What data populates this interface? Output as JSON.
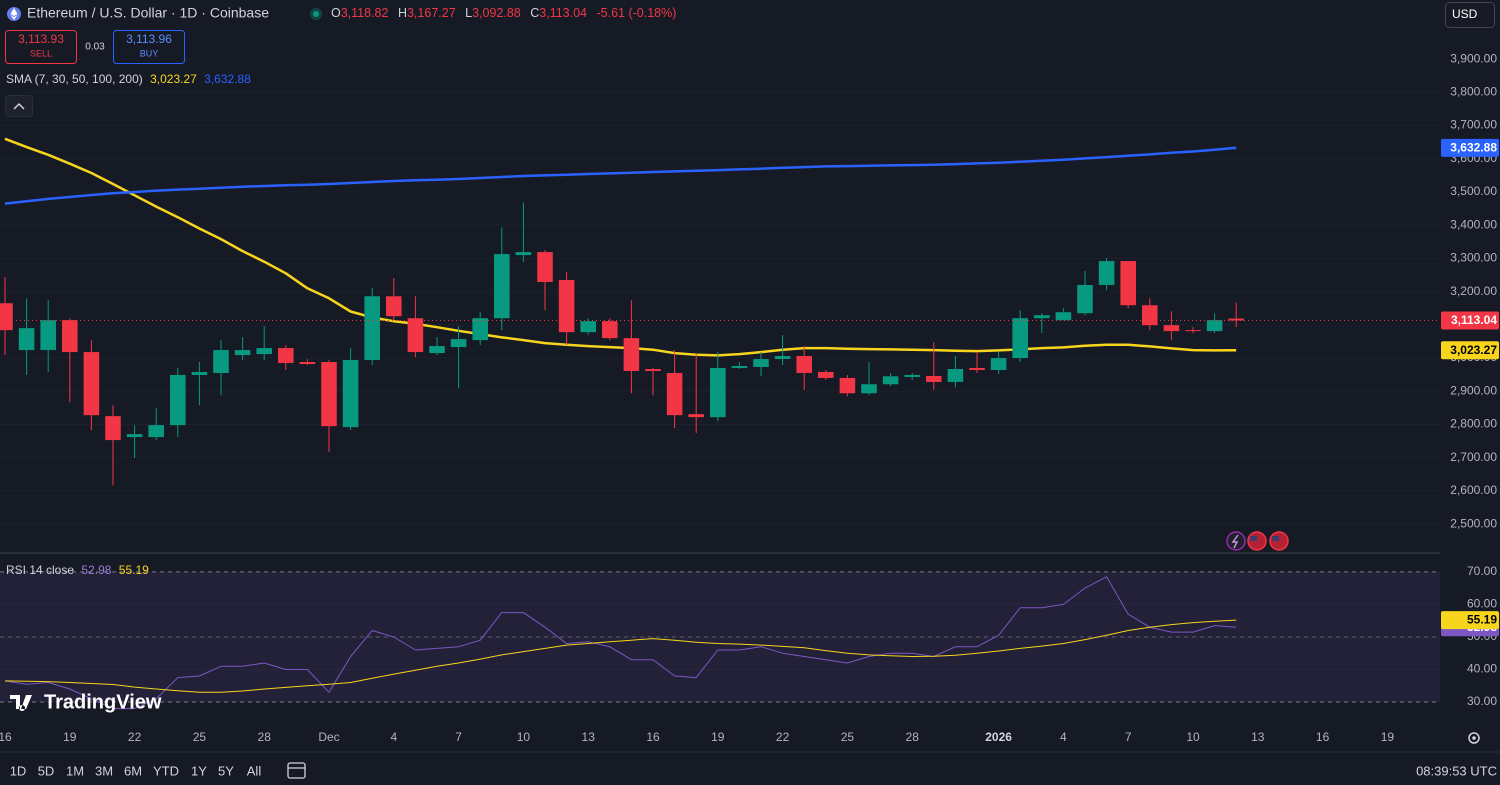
{
  "ui": {
    "sell_price": "3,113.93",
    "sell": "SELL",
    "spread": "0.03",
    "buy_price": "3,113.96",
    "buy": "BUY",
    "currency": "USD",
    "brand": "TradingView",
    "clock": "08:39:53 UTC",
    "ranges": [
      "1D",
      "5D",
      "1M",
      "3M",
      "6M",
      "YTD",
      "1Y",
      "5Y",
      "All"
    ]
  },
  "chart_data": [
    {
      "type": "candlestick",
      "title": "Ethereum / U.S. Dollar · 1D · Coinbase",
      "ohlc": [
        {
          "key": "O",
          "label": "3,118.82"
        },
        {
          "key": "H",
          "label": "3,167.27"
        },
        {
          "key": "L",
          "label": "3,092.88"
        },
        {
          "key": "C",
          "label": "3,113.04"
        }
      ],
      "change": "-5.61 (-0.18%)",
      "categories": [
        "16",
        null,
        null,
        "19",
        null,
        null,
        "22",
        null,
        null,
        "25",
        null,
        null,
        "28",
        null,
        null,
        "Dec",
        null,
        null,
        "4",
        null,
        null,
        "7",
        null,
        null,
        "10",
        null,
        null,
        "13",
        null,
        null,
        "16",
        null,
        null,
        "19",
        null,
        null,
        "22",
        null,
        null,
        "25",
        null,
        null,
        "28",
        null,
        null,
        null,
        "2026",
        null,
        null,
        "4",
        null,
        null,
        "7",
        null,
        null,
        "10",
        null,
        null
      ],
      "xticks_after": [
        "13",
        "16",
        "19"
      ],
      "open": [
        3165,
        3024,
        3024,
        3114,
        3018,
        2825,
        2762,
        2762,
        2798,
        2949,
        2955,
        3009,
        3012,
        3030,
        2988,
        2988,
        2792,
        2994,
        3186,
        3120,
        3015,
        3033,
        3054,
        3120,
        3310,
        3319,
        3235,
        3078,
        3111,
        3060,
        2967,
        2955,
        2831,
        2822,
        2970,
        2973,
        2997,
        3006,
        2958,
        2940,
        2894,
        2921,
        2943,
        2946,
        2928,
        2970,
        2964,
        3000,
        3120,
        3114,
        3135,
        3220,
        3292,
        3159,
        3099,
        3084,
        3081,
        3118.82
      ],
      "high": [
        3244,
        3180,
        3174,
        3120,
        3054,
        2858,
        2798,
        2849,
        2970,
        2988,
        3054,
        3063,
        3096,
        3039,
        2997,
        2994,
        3030,
        3211,
        3241,
        3186,
        3063,
        3096,
        3138,
        3394,
        3469,
        3325,
        3259,
        3120,
        3120,
        3174,
        2970,
        3024,
        3012,
        3018,
        2988,
        3018,
        3069,
        3036,
        2964,
        2949,
        2988,
        2955,
        2955,
        3048,
        3006,
        3018,
        3018,
        3144,
        3135,
        3150,
        3262,
        3301,
        3292,
        3180,
        3141,
        3093,
        3135,
        3167.27
      ],
      "low": [
        3009,
        2949,
        2958,
        2867,
        2783,
        2617,
        2699,
        2753,
        2762,
        2858,
        2888,
        2994,
        2994,
        2964,
        2979,
        2717,
        2783,
        2979,
        3114,
        3003,
        3009,
        2909,
        3039,
        3084,
        3289,
        3144,
        3039,
        3069,
        3054,
        2894,
        2888,
        2789,
        2774,
        2810,
        2967,
        2946,
        2979,
        2904,
        2934,
        2885,
        2888,
        2915,
        2934,
        2904,
        2912,
        2955,
        2952,
        2988,
        3075,
        3114,
        3129,
        3205,
        3150,
        3084,
        3054,
        3075,
        3075,
        3092.88
      ],
      "close": [
        3084,
        3090,
        3114,
        3018,
        2828,
        2753,
        2771,
        2798,
        2949,
        2958,
        3024,
        3024,
        3030,
        2985,
        2982,
        2795,
        2994,
        3186,
        3126,
        3018,
        3036,
        3057,
        3120,
        3313,
        3319,
        3229,
        3078,
        3111,
        3060,
        2961,
        2961,
        2828,
        2822,
        2970,
        2976,
        2997,
        3006,
        2955,
        2940,
        2894,
        2921,
        2945,
        2949,
        2928,
        2967,
        2964,
        3000,
        3120,
        3129,
        3138,
        3220,
        3292,
        3159,
        3099,
        3081,
        3081,
        3114,
        3113.04
      ],
      "up_color": "#089981",
      "down_color": "#f23645",
      "last_price_label": "3,113.04",
      "indicator": "SMA (7, 30, 50, 100, 200)",
      "series": [
        {
          "color": "#f7d51d",
          "last_label": "3,023.27",
          "values": [
            3660,
            3635,
            3612,
            3585,
            3557,
            3524,
            3490,
            3456,
            3424,
            3390,
            3358,
            3322,
            3290,
            3255,
            3210,
            3180,
            3140,
            3122,
            3111,
            3103,
            3093,
            3082,
            3072,
            3062,
            3054,
            3045,
            3040,
            3036,
            3033,
            3030,
            3025,
            3015,
            3010,
            3008,
            3012,
            3018,
            3025,
            3030,
            3030,
            3028,
            3027,
            3026,
            3025,
            3024,
            3022,
            3021,
            3023,
            3026,
            3030,
            3032,
            3037,
            3040,
            3040,
            3035,
            3029,
            3024,
            3023,
            3023.27
          ]
        },
        {
          "color": "#2962ff",
          "last_label": "3,632.88",
          "values": [
            3465,
            3472,
            3479,
            3485,
            3491,
            3496,
            3500,
            3504,
            3507,
            3510,
            3513,
            3516,
            3518,
            3520,
            3522,
            3524,
            3527,
            3530,
            3533,
            3535,
            3537,
            3539,
            3542,
            3545,
            3548,
            3550,
            3552,
            3554,
            3556,
            3558,
            3560,
            3562,
            3564,
            3566,
            3568,
            3570,
            3573,
            3575,
            3577,
            3578,
            3579,
            3580,
            3581,
            3582,
            3584,
            3586,
            3588,
            3591,
            3594,
            3597,
            3601,
            3605,
            3609,
            3613,
            3618,
            3622,
            3627,
            3632.88
          ]
        }
      ],
      "ylim": [
        2413,
        4078
      ],
      "yticks": [
        {
          "value": 2500,
          "label": "2,500.00"
        },
        {
          "value": 2600,
          "label": "2,600.00"
        },
        {
          "value": 2700,
          "label": "2,700.00"
        },
        {
          "value": 2800,
          "label": "2,800.00"
        },
        {
          "value": 2900,
          "label": "2,900.00"
        },
        {
          "value": 3000,
          "label": "3,000.00"
        },
        {
          "value": 3100,
          "label": "3,100.00"
        },
        {
          "value": 3200,
          "label": "3,200.00"
        },
        {
          "value": 3300,
          "label": "3,300.00"
        },
        {
          "value": 3400,
          "label": "3,400.00"
        },
        {
          "value": 3500,
          "label": "3,500.00"
        },
        {
          "value": 3600,
          "label": "3,600.00"
        },
        {
          "value": 3700,
          "label": "3,700.00"
        },
        {
          "value": 3800,
          "label": "3,800.00"
        },
        {
          "value": 3900,
          "label": "3,900.00"
        }
      ],
      "grid": true
    },
    {
      "type": "line",
      "title": "RSI 14 close",
      "series": [
        {
          "color": "#7e57c2",
          "last_label": "52.98",
          "values": [
            36.5,
            35.5,
            36,
            34,
            31,
            28,
            28,
            31,
            37.5,
            38,
            41,
            41,
            42,
            40,
            40,
            33,
            44,
            52,
            50,
            46,
            46.5,
            47,
            49,
            57.5,
            57.5,
            53,
            48,
            48.5,
            47,
            43,
            43,
            38,
            37.5,
            46,
            46,
            47,
            45,
            44,
            43,
            42,
            44,
            45,
            45,
            44,
            47,
            47,
            50.5,
            59,
            59,
            60,
            65,
            68.5,
            57,
            53,
            51.5,
            51.5,
            53.5,
            52.98
          ]
        },
        {
          "color": "#f7d51d",
          "last_label": "55.19",
          "values": [
            36.5,
            36.4,
            36.3,
            36.0,
            35.7,
            35.4,
            34.6,
            34.0,
            33.5,
            33.0,
            33.0,
            33.4,
            34.0,
            34.5,
            35.0,
            35.5,
            36.0,
            37.3,
            38.6,
            39.8,
            41.0,
            42.0,
            43.2,
            44.5,
            45.5,
            46.5,
            47.5,
            48.0,
            48.5,
            49.0,
            49.5,
            49.0,
            48.4,
            48.0,
            47.8,
            47.5,
            47.1,
            46.7,
            45.8,
            45.0,
            44.5,
            44.2,
            44.0,
            44.1,
            44.4,
            45.0,
            45.7,
            46.5,
            47.2,
            48.0,
            49.2,
            50.5,
            52.0,
            53.0,
            53.8,
            54.4,
            54.8,
            55.19
          ]
        }
      ],
      "band": [
        30,
        70
      ],
      "midline": 50,
      "ylim": [
        25.1,
        75.8
      ],
      "yticks": [
        {
          "value": 30,
          "label": "30.00"
        },
        {
          "value": 40,
          "label": "40.00"
        },
        {
          "value": 50,
          "label": "50.00"
        },
        {
          "value": 60,
          "label": "60.00"
        },
        {
          "value": 70,
          "label": "70.00"
        }
      ]
    }
  ]
}
